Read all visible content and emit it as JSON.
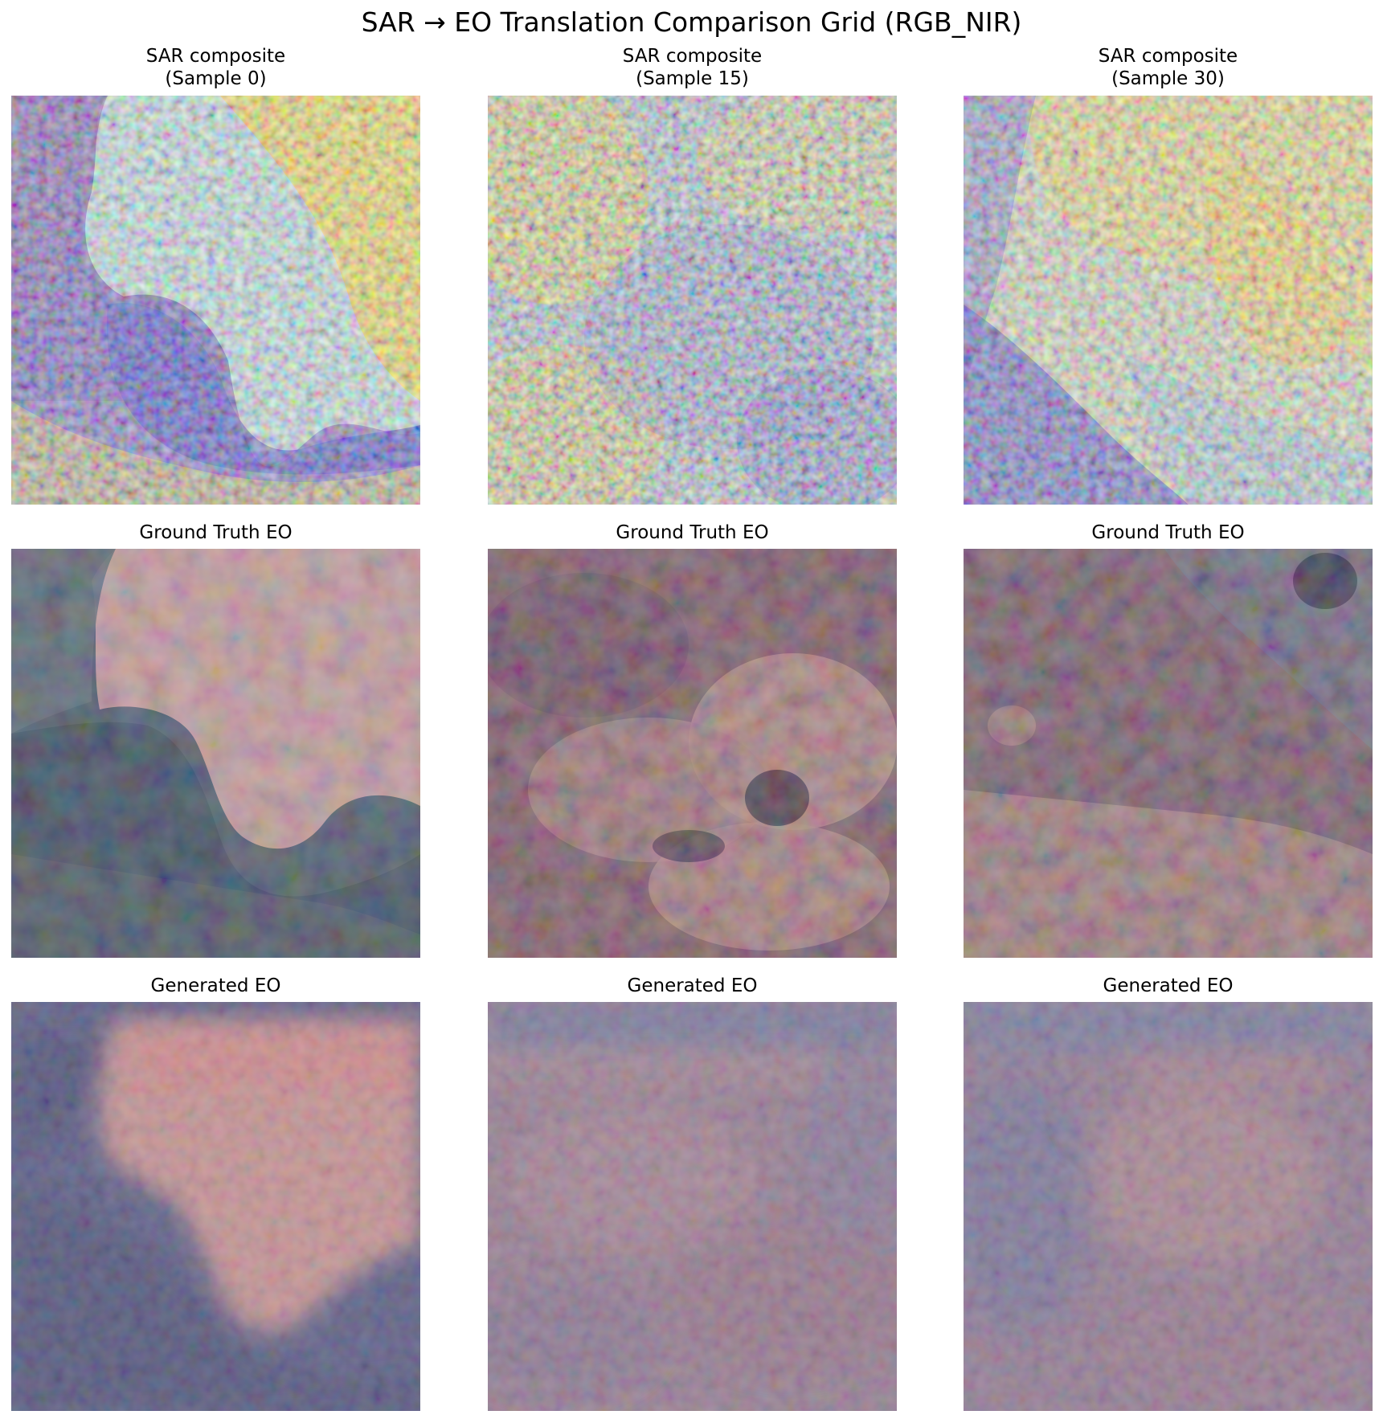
{
  "figure": {
    "title": "SAR → EO Translation Comparison Grid (RGB_NIR)"
  },
  "rows": [
    {
      "kind": "sar",
      "panels": [
        {
          "title": "SAR composite\n(Sample 0)"
        },
        {
          "title": "SAR composite\n(Sample 15)"
        },
        {
          "title": "SAR composite\n(Sample 30)"
        }
      ]
    },
    {
      "kind": "ground-truth",
      "panels": [
        {
          "title": "Ground Truth EO"
        },
        {
          "title": "Ground Truth EO"
        },
        {
          "title": "Ground Truth EO"
        }
      ]
    },
    {
      "kind": "generated",
      "panels": [
        {
          "title": "Generated EO"
        },
        {
          "title": "Generated EO"
        },
        {
          "title": "Generated EO"
        }
      ]
    }
  ],
  "colors": {
    "sar_yellow": "#ffe14a",
    "sar_cyan": "#bfe8f0",
    "sar_blue": "#3a4fd8",
    "sar_purple": "#6a1a8a",
    "gt_pink": "#c49a9c",
    "gt_slate": "#4f5c72",
    "gt_mauve": "#7d5566",
    "gen_pink": "#c99599",
    "gen_indigo": "#5e5f8c",
    "gen_mauve": "#9b8099"
  }
}
